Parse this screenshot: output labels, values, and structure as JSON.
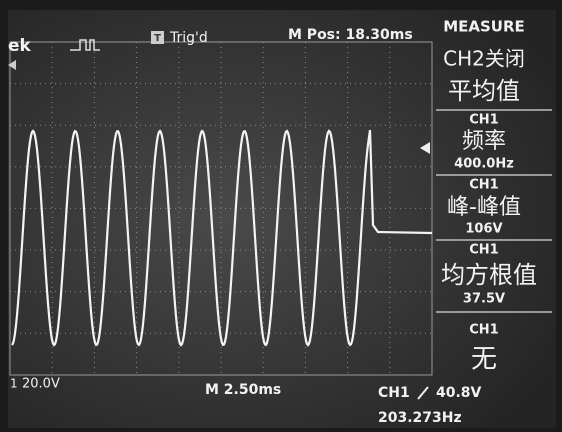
{
  "header": {
    "logo": "ek",
    "trigger_icon": "T",
    "trigger_status": "Trig'd",
    "m_pos": "M Pos: 18.30ms"
  },
  "measure": {
    "title": "MEASURE",
    "items": [
      {
        "source": "CH2关闭",
        "label": "平均值"
      },
      {
        "source": "CH1",
        "label": "频率",
        "value": "400.0Hz"
      },
      {
        "source": "CH1",
        "label": "峰-峰值",
        "value": "106V"
      },
      {
        "source": "CH1",
        "label": "均方根值",
        "value": "37.5V"
      },
      {
        "source": "CH1",
        "label": "无"
      }
    ]
  },
  "footer": {
    "ch1_scale": "20.0V",
    "timebase": "M 2.50ms",
    "trigger_source": "CH1",
    "trigger_level": "40.8V",
    "frequency": "203.273Hz"
  }
}
